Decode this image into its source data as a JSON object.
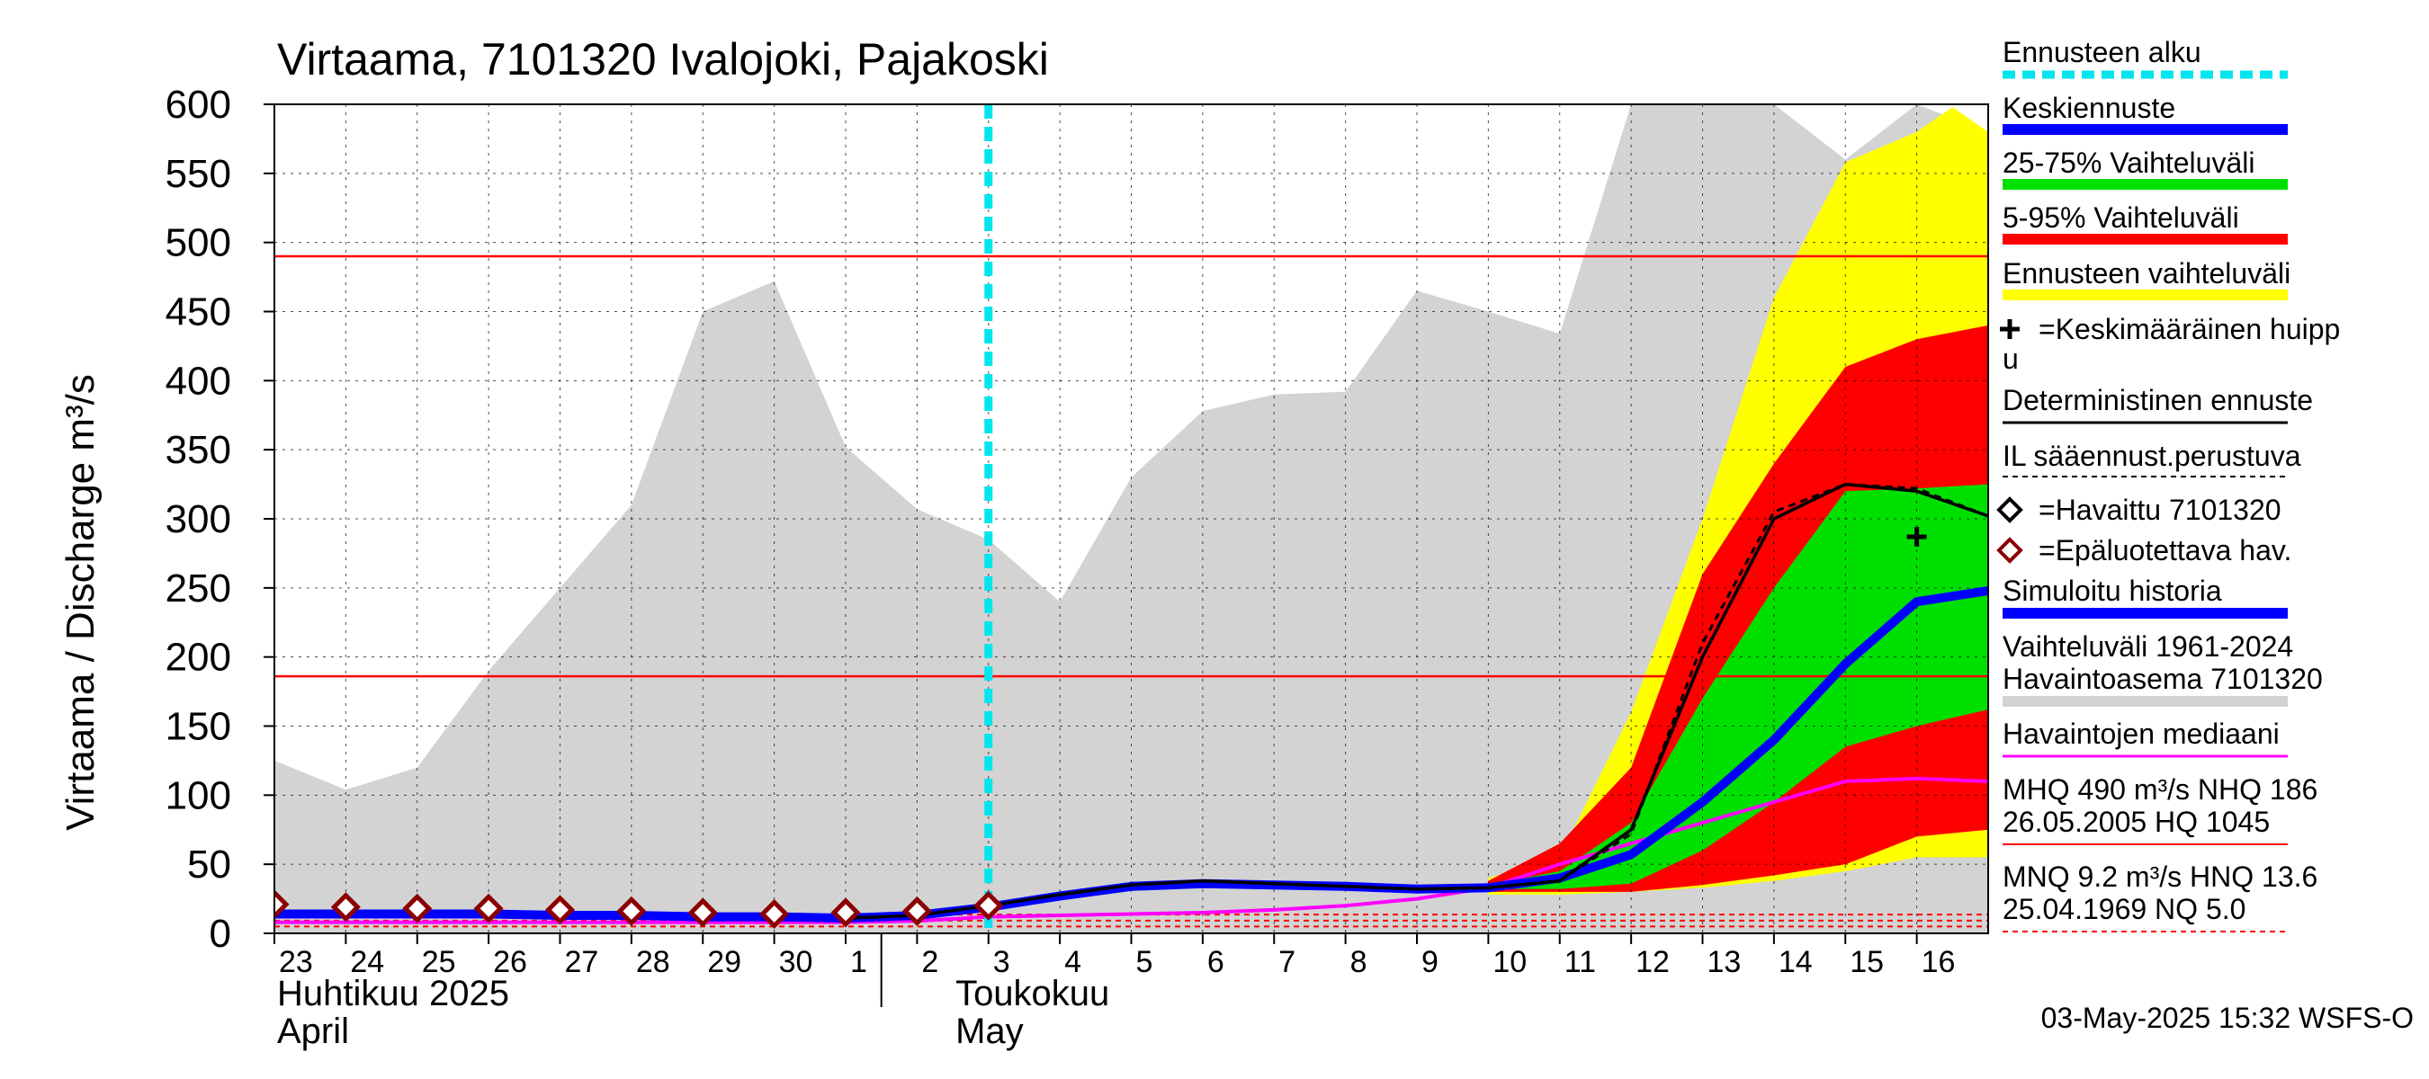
{
  "chart_data": {
    "type": "line",
    "title": "Virtaama, 7101320 Ivalojoki, Pajakoski",
    "ylabel": "Virtaama / Discharge   m³/s",
    "ylim": [
      0,
      600
    ],
    "yticks": [
      0,
      50,
      100,
      150,
      200,
      250,
      300,
      350,
      400,
      450,
      500,
      550,
      600
    ],
    "xlim": [
      0,
      24
    ],
    "x_day_labels": [
      "23",
      "24",
      "25",
      "26",
      "27",
      "28",
      "29",
      "30",
      "1",
      "2",
      "3",
      "4",
      "5",
      "6",
      "7",
      "8",
      "9",
      "10",
      "11",
      "12",
      "13",
      "14",
      "15",
      "16"
    ],
    "month_labels": [
      {
        "x": 0,
        "fi": "Huhtikuu  2025",
        "en": "April"
      },
      {
        "x": 9.5,
        "fi": "Toukokuu",
        "en": "May"
      }
    ],
    "month_separator_x": 8.5,
    "forecast_start_x": 10,
    "reference_lines": [
      {
        "name": "MHQ",
        "value": 490
      },
      {
        "name": "MNQ",
        "value": 9.2
      },
      {
        "name": "NHQ",
        "value": 186
      },
      {
        "name": "NQ",
        "value": 5.0
      },
      {
        "name": "HNQ",
        "value": 13.6
      }
    ],
    "historical_range_band": {
      "x": [
        0,
        1,
        2,
        3,
        4,
        5,
        6,
        7,
        8,
        9,
        10,
        11,
        12,
        13,
        14,
        15,
        16,
        17,
        18,
        19,
        20,
        21,
        22,
        23,
        24
      ],
      "upper": [
        125,
        104,
        120,
        190,
        250,
        310,
        450,
        472,
        352,
        307,
        285,
        240,
        330,
        378,
        390,
        392,
        465,
        450,
        434,
        600,
        600,
        600,
        560,
        600,
        580
      ],
      "lower": [
        0,
        0,
        0,
        0,
        0,
        0,
        0,
        0,
        0,
        0,
        0,
        0,
        0,
        0,
        0,
        0,
        0,
        0,
        0,
        0,
        0,
        0,
        0,
        0,
        0
      ]
    },
    "forecast_range_band": {
      "x": [
        17,
        18,
        19,
        20,
        21,
        22,
        23,
        23.5,
        24
      ],
      "upper": [
        40,
        55,
        160,
        300,
        460,
        558,
        580,
        598,
        580
      ],
      "lower": [
        28,
        28,
        30,
        33,
        38,
        45,
        55,
        55,
        55
      ]
    },
    "band_5_95": {
      "x": [
        17,
        18,
        19,
        20,
        21,
        22,
        23,
        24
      ],
      "upper": [
        38,
        65,
        120,
        260,
        340,
        410,
        430,
        440
      ],
      "lower": [
        30,
        30,
        30,
        35,
        42,
        50,
        70,
        75
      ]
    },
    "band_25_75": {
      "x": [
        17,
        18,
        19,
        20,
        21,
        22,
        23,
        24
      ],
      "upper": [
        35,
        45,
        80,
        170,
        250,
        320,
        322,
        325
      ],
      "lower": [
        32,
        32,
        36,
        60,
        95,
        135,
        150,
        162
      ]
    },
    "series": [
      {
        "name": "Keskiennuste",
        "color": "#0000ff",
        "x": [
          0,
          1,
          2,
          3,
          4,
          5,
          6,
          7,
          8,
          9,
          10,
          11,
          12,
          13,
          14,
          15,
          16,
          17,
          18,
          19,
          20,
          21,
          22,
          23,
          24
        ],
        "values": [
          14,
          14,
          14,
          14,
          13,
          13,
          12,
          12,
          11,
          13,
          19,
          27,
          34,
          36,
          35,
          34,
          32,
          33,
          40,
          57,
          95,
          140,
          195,
          240,
          248
        ]
      },
      {
        "name": "Deterministinen ennuste",
        "color": "#000000",
        "x": [
          8,
          9,
          10,
          11,
          12,
          13,
          14,
          15,
          16,
          17,
          18,
          19,
          20,
          21,
          22,
          23,
          24
        ],
        "values": [
          11,
          13,
          20,
          28,
          35,
          38,
          36,
          34,
          32,
          33,
          38,
          75,
          200,
          300,
          325,
          320,
          302
        ]
      },
      {
        "name": "IL sääennust.perustuva",
        "color": "#000000",
        "dashed": true,
        "x": [
          8,
          9,
          10,
          11,
          12,
          13,
          14,
          15,
          16,
          17,
          18,
          19,
          20,
          21,
          22,
          23,
          24
        ],
        "values": [
          11,
          13,
          20,
          28,
          35,
          38,
          36,
          34,
          32,
          33,
          38,
          72,
          210,
          305,
          325,
          322,
          302
        ]
      },
      {
        "name": "Havaintojen mediaani",
        "color": "#ff00ff",
        "x": [
          0,
          1,
          2,
          3,
          4,
          5,
          6,
          7,
          8,
          9,
          10,
          11,
          12,
          13,
          14,
          15,
          16,
          17,
          18,
          19,
          20,
          21,
          22,
          23,
          24
        ],
        "values": [
          8,
          8,
          8,
          8,
          8,
          8,
          8,
          8,
          8,
          9,
          12,
          13,
          14,
          15,
          17,
          20,
          25,
          33,
          50,
          65,
          80,
          95,
          110,
          112,
          110
        ]
      }
    ],
    "unreliable_observations": {
      "x": [
        0,
        1,
        2,
        3,
        4,
        5,
        6,
        7,
        8,
        9
      ],
      "values": [
        21,
        19,
        18,
        18,
        17,
        16,
        15,
        14,
        15,
        16
      ]
    },
    "observed": {
      "x": [
        10
      ],
      "values": [
        20
      ]
    },
    "mean_peak": {
      "x": 23,
      "value": 287
    }
  },
  "legend": {
    "items": [
      "Ennusteen alku",
      "Keskiennuste",
      "25-75% Vaihteluväli",
      "5-95% Vaihteluväli",
      "Ennusteen vaihteluväli",
      "=Keskimääräinen huipp",
      "u",
      "Deterministinen ennuste",
      "IL sääennust.perustuva",
      "=Havaittu 7101320",
      "=Epäluotettava hav.",
      "Simuloitu historia",
      "Vaihteluväli 1961-2024",
      " Havaintoasema 7101320",
      "Havaintojen mediaani",
      "MHQ  490 m³/s NHQ  186",
      "26.05.2005 HQ 1045",
      "MNQ  9.2 m³/s HNQ 13.6",
      "25.04.1969 NQ  5.0"
    ]
  },
  "footer": {
    "timestamp": "03-May-2025 15:32 WSFS-O"
  },
  "colors": {
    "history_band": "#d3d3d3",
    "forecast_band": "#ffff00",
    "band_5_95": "#ff0000",
    "band_25_75": "#00e000",
    "forecast_start": "#00e5ee",
    "mean": "#0000ff",
    "median": "#ff00ff",
    "unreliable": "#8b0000"
  }
}
